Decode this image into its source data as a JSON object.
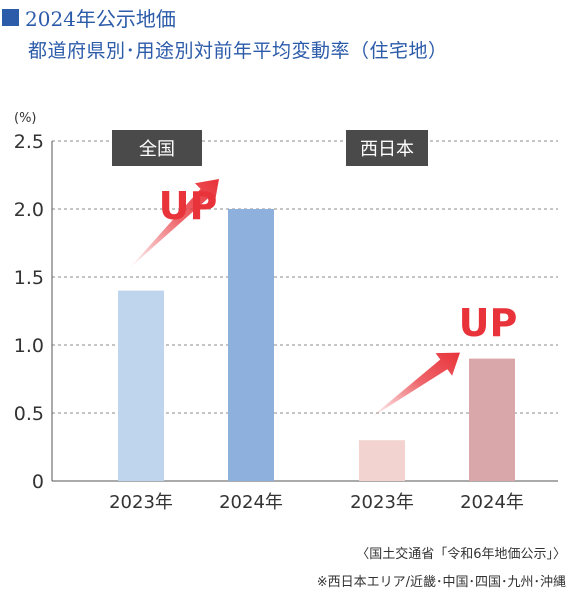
{
  "title": {
    "line1": "2024年公示地価",
    "line2": "都道府県別･用途別対前年平均変動率（住宅地）"
  },
  "chart_data": {
    "type": "bar",
    "ylabel": "(%)",
    "ylim": [
      0,
      2.5
    ],
    "yticks": [
      "0",
      "0.5",
      "1.0",
      "1.5",
      "2.0",
      "2.5"
    ],
    "grid": true,
    "groups": [
      {
        "label": "全国",
        "up_label": "UP",
        "bars": [
          {
            "category": "2023年",
            "value": 1.4,
            "color": "#bfd5ee"
          },
          {
            "category": "2024年",
            "value": 2.0,
            "color": "#8eb0dc"
          }
        ]
      },
      {
        "label": "西日本",
        "up_label": "UP",
        "bars": [
          {
            "category": "2023年",
            "value": 0.3,
            "color": "#f2d3d0"
          },
          {
            "category": "2024年",
            "value": 0.9,
            "color": "#d9a7aa"
          }
        ]
      }
    ]
  },
  "notes": {
    "source": "〈国土交通省「令和6年地価公示」〉",
    "region": "※西日本エリア/近畿･中国･四国･九州･沖縄"
  },
  "colors": {
    "title": "#2b5ba9",
    "up": "#e8333a",
    "label_box": "#4a4a4a"
  }
}
